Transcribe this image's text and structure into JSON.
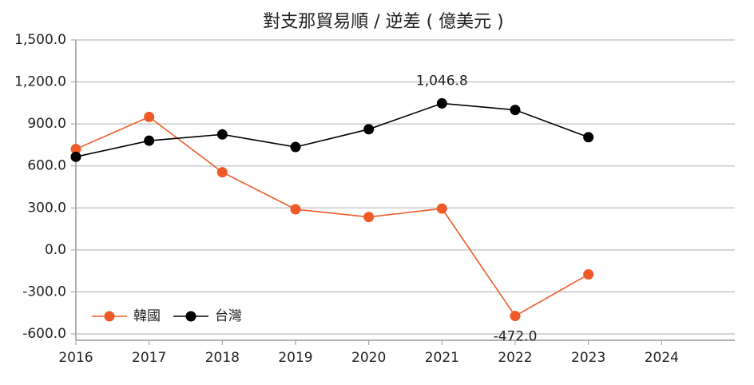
{
  "chart_data": {
    "type": "line",
    "title": "對支那貿易順 / 逆差 ( 億美元 )",
    "x": [
      2016,
      2017,
      2018,
      2019,
      2020,
      2021,
      2022,
      2023
    ],
    "xlim": [
      2016,
      2025
    ],
    "xticks": [
      2016,
      2017,
      2018,
      2019,
      2020,
      2021,
      2022,
      2023,
      2024
    ],
    "ylim": [
      -600,
      1500
    ],
    "yticks": [
      {
        "value": -600,
        "label": "-600.0"
      },
      {
        "value": -300,
        "label": "-300.0"
      },
      {
        "value": 0,
        "label": "0.0"
      },
      {
        "value": 300,
        "label": "300.0"
      },
      {
        "value": 600,
        "label": "600.0"
      },
      {
        "value": 900,
        "label": "900.0"
      },
      {
        "value": 1200,
        "label": "1,200.0"
      },
      {
        "value": 1500,
        "label": "1,500.0"
      }
    ],
    "grid": true,
    "legend": "lower-left",
    "series": [
      {
        "name": "韓國",
        "color": "#f05a28",
        "values": [
          720,
          950,
          555,
          290,
          235,
          295,
          -472.0,
          -175
        ],
        "value_labels": [
          null,
          null,
          null,
          null,
          null,
          null,
          "-472.0",
          null
        ]
      },
      {
        "name": "台灣",
        "color": "#000000",
        "values": [
          665,
          780,
          825,
          735,
          862,
          1046.8,
          1000,
          805
        ],
        "value_labels": [
          null,
          null,
          null,
          null,
          null,
          "1,046.8",
          null,
          null
        ]
      }
    ]
  }
}
